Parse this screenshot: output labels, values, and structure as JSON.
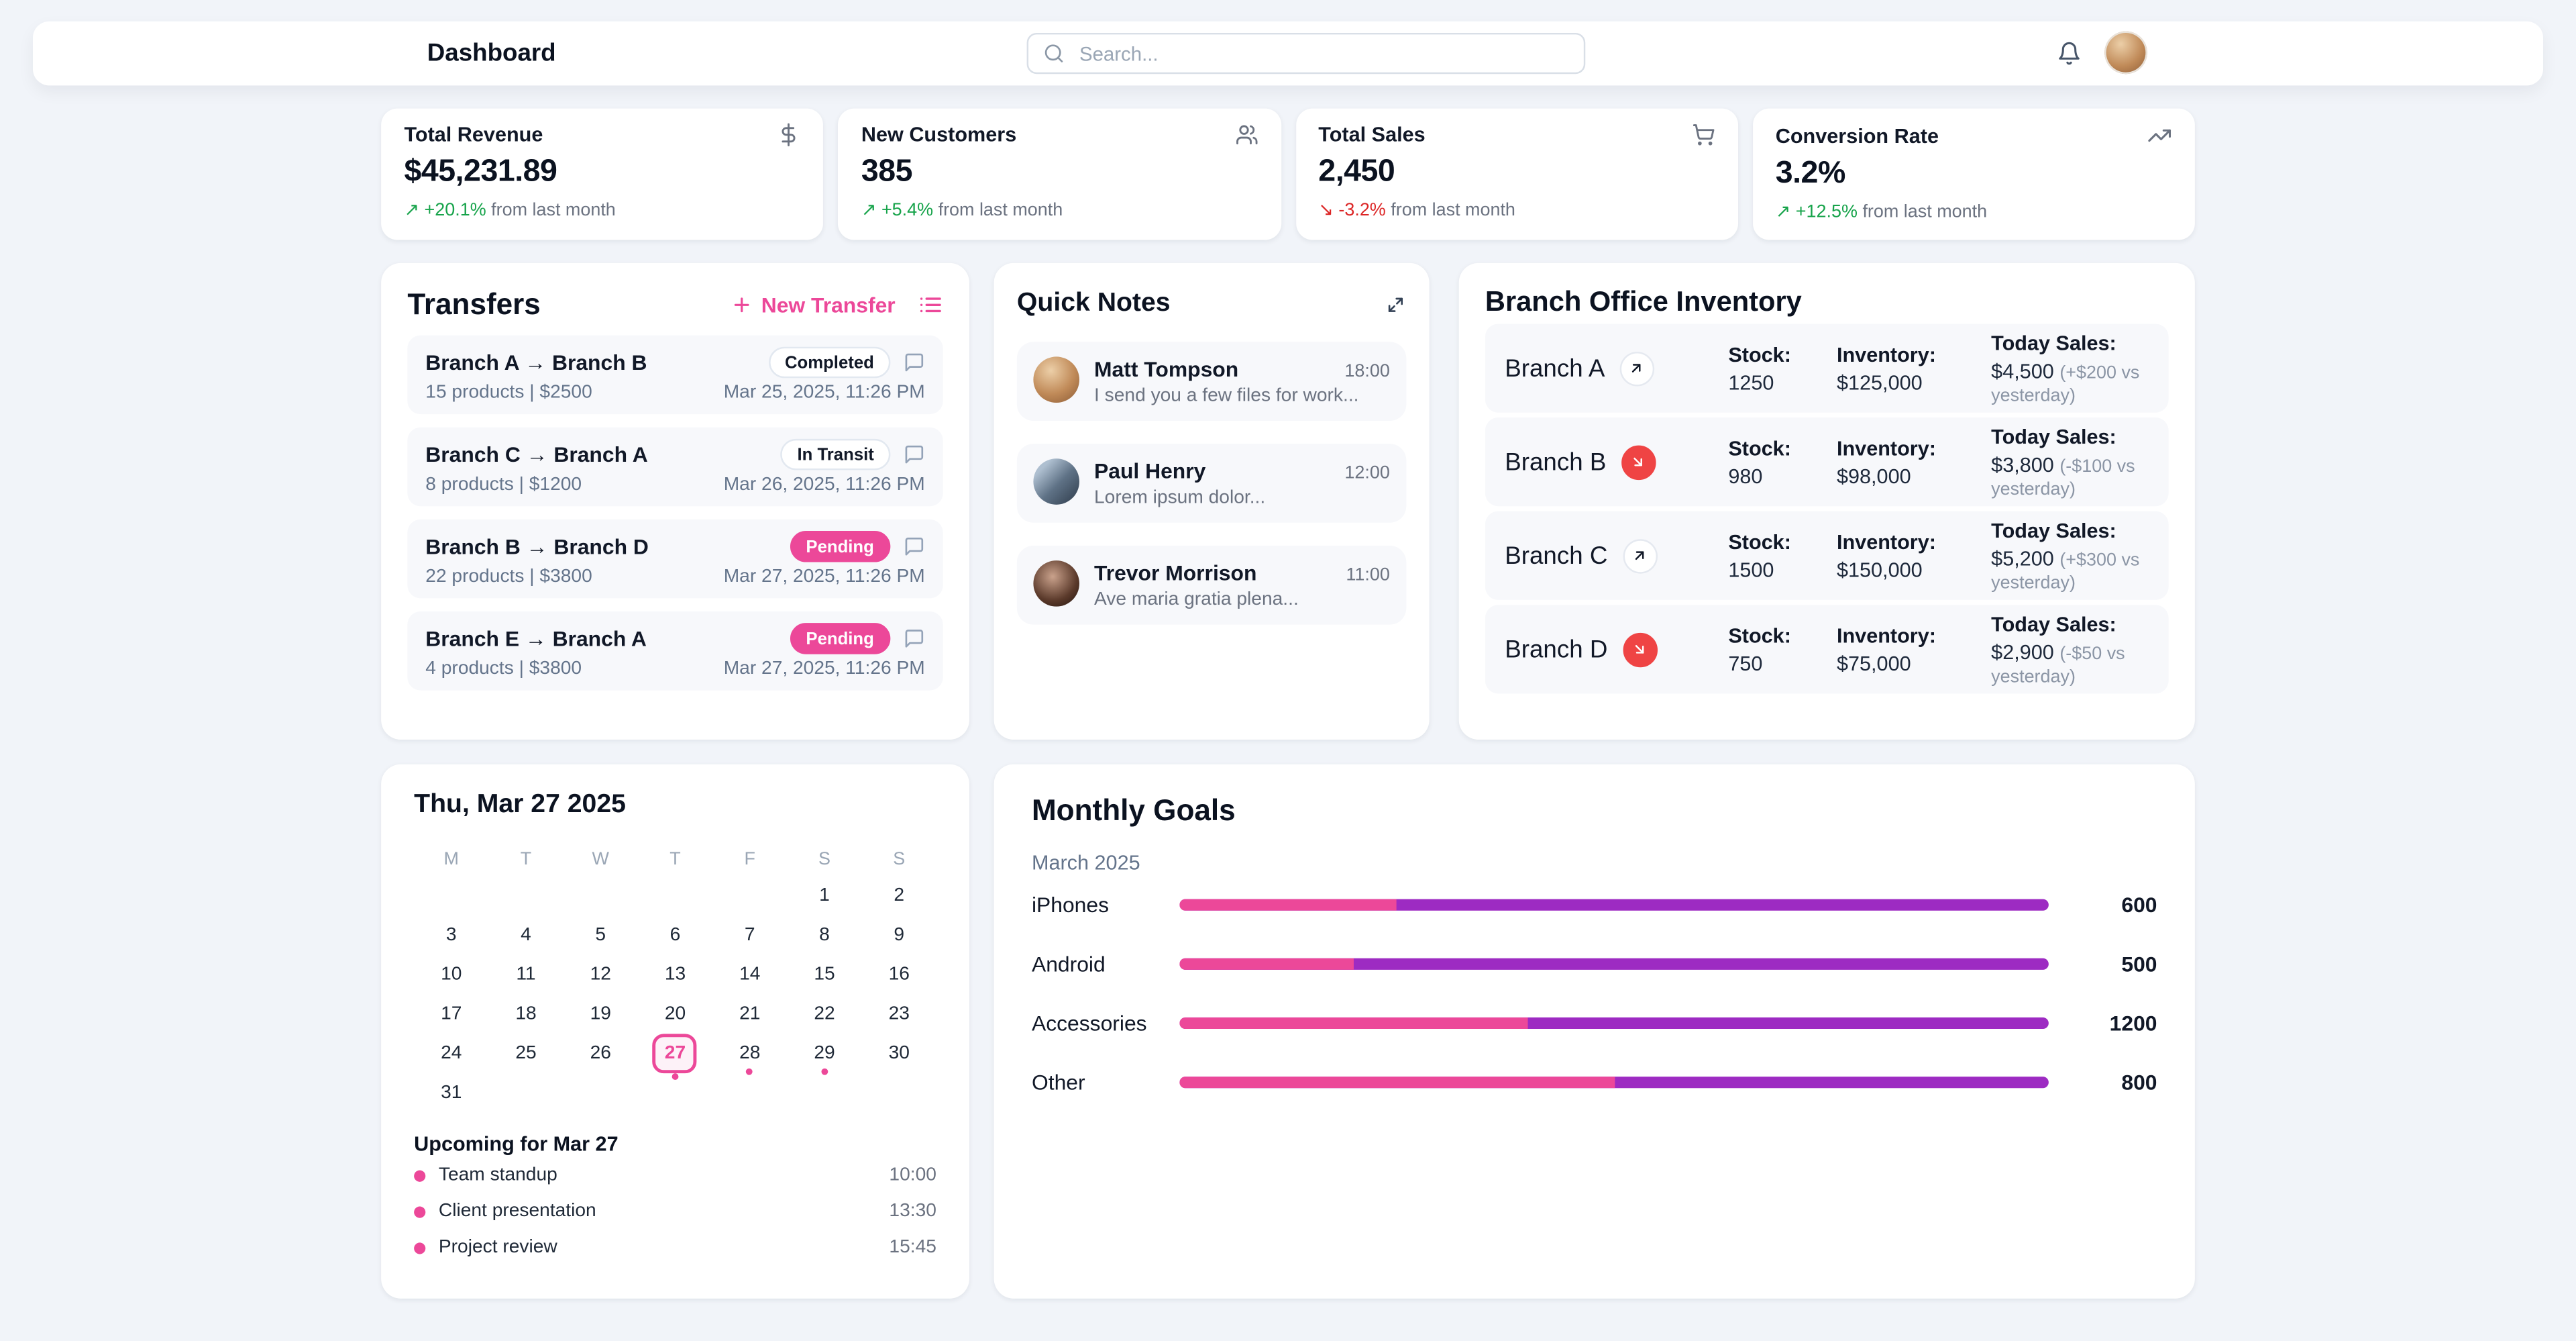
{
  "header": {
    "title": "Dashboard",
    "search_placeholder": "Search...",
    "icons": [
      "search-icon",
      "bell-icon",
      "user-avatar"
    ]
  },
  "colors": {
    "pink": "#ec4899",
    "purple": "#9d2bc2",
    "green": "#16a34a",
    "red": "#dc2626",
    "down_circle": "#ef4444",
    "row_bg": "#f7f8fb"
  },
  "stats": [
    {
      "label": "Total Revenue",
      "value": "$45,231.89",
      "delta_arrow": "↗",
      "delta": "+20.1%",
      "delta_suffix": " from last month",
      "trend": "up",
      "icon": "dollar-icon"
    },
    {
      "label": "New Customers",
      "value": "385",
      "delta_arrow": "↗",
      "delta": "+5.4%",
      "delta_suffix": " from last month",
      "trend": "up",
      "icon": "users-icon"
    },
    {
      "label": "Total Sales",
      "value": "2,450",
      "delta_arrow": "↘",
      "delta": "-3.2%",
      "delta_suffix": " from last month",
      "trend": "down",
      "icon": "cart-icon"
    },
    {
      "label": "Conversion Rate",
      "value": "3.2%",
      "delta_arrow": "↗",
      "delta": "+12.5%",
      "delta_suffix": " from last month",
      "trend": "up",
      "icon": "trending-up-icon"
    }
  ],
  "transfers": {
    "title": "Transfers",
    "new_button": "New Transfer",
    "items": [
      {
        "route": "Branch A → Branch B",
        "details": "15 products | $2500",
        "status": "Completed",
        "status_style": "outline",
        "date": "Mar 25, 2025, 11:26 PM"
      },
      {
        "route": "Branch C → Branch A",
        "details": "8 products | $1200",
        "status": "In Transit",
        "status_style": "outline",
        "date": "Mar 26, 2025, 11:26 PM"
      },
      {
        "route": "Branch B → Branch D",
        "details": "22 products | $3800",
        "status": "Pending",
        "status_style": "solid",
        "date": "Mar 27, 2025, 11:26 PM"
      },
      {
        "route": "Branch E → Branch A",
        "details": "4 products | $3800",
        "status": "Pending",
        "status_style": "solid",
        "date": "Mar 27, 2025, 11:26 PM"
      }
    ]
  },
  "quick_notes": {
    "title": "Quick Notes",
    "items": [
      {
        "name": "Matt Tompson",
        "time": "18:00",
        "message": "I send you a few files for work..."
      },
      {
        "name": "Paul Henry",
        "time": "12:00",
        "message": "Lorem ipsum dolor..."
      },
      {
        "name": "Trevor Morrison",
        "time": "11:00",
        "message": "Ave maria gratia plena..."
      }
    ]
  },
  "inventory": {
    "title": "Branch Office Inventory",
    "stock_label": "Stock:",
    "inventory_label": "Inventory:",
    "sales_label": "Today Sales:",
    "rows": [
      {
        "name": "Branch A",
        "trend": "up",
        "stock": "1250",
        "inventory": "$125,000",
        "sales": "$4,500",
        "sales_note": "(+$200 vs yesterday)"
      },
      {
        "name": "Branch B",
        "trend": "down",
        "stock": "980",
        "inventory": "$98,000",
        "sales": "$3,800",
        "sales_note": "(-$100 vs yesterday)"
      },
      {
        "name": "Branch C",
        "trend": "up",
        "stock": "1500",
        "inventory": "$150,000",
        "sales": "$5,200",
        "sales_note": "(+$300 vs yesterday)"
      },
      {
        "name": "Branch D",
        "trend": "down",
        "stock": "750",
        "inventory": "$75,000",
        "sales": "$2,900",
        "sales_note": "(-$50 vs yesterday)"
      }
    ]
  },
  "calendar": {
    "title": "Thu, Mar 27 2025",
    "weekdays": [
      "M",
      "T",
      "W",
      "T",
      "F",
      "S",
      "S"
    ],
    "weeks": [
      [
        "",
        "",
        "",
        "",
        "",
        "1",
        "2"
      ],
      [
        "3",
        "4",
        "5",
        "6",
        "7",
        "8",
        "9"
      ],
      [
        "10",
        "11",
        "12",
        "13",
        "14",
        "15",
        "16"
      ],
      [
        "17",
        "18",
        "19",
        "20",
        "21",
        "22",
        "23"
      ],
      [
        "24",
        "25",
        "26",
        "27",
        "28",
        "29",
        "30"
      ],
      [
        "31",
        "",
        "",
        "",
        "",
        "",
        ""
      ]
    ],
    "selected_day": "27",
    "dotted_days": [
      "27",
      "28",
      "29"
    ],
    "upcoming_title": "Upcoming for Mar 27",
    "events": [
      {
        "name": "Team standup",
        "time": "10:00"
      },
      {
        "name": "Client presentation",
        "time": "13:30"
      },
      {
        "name": "Project review",
        "time": "15:45"
      }
    ]
  },
  "goals": {
    "title": "Monthly Goals",
    "subtitle": "March 2025",
    "items": [
      {
        "label": "iPhones",
        "value": "600",
        "pink_pct": 25
      },
      {
        "label": "Android",
        "value": "500",
        "pink_pct": 20
      },
      {
        "label": "Accessories",
        "value": "1200",
        "pink_pct": 40
      },
      {
        "label": "Other",
        "value": "800",
        "pink_pct": 50
      }
    ]
  }
}
